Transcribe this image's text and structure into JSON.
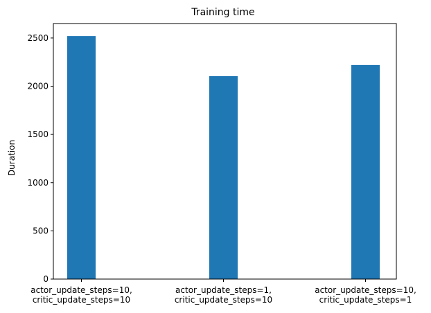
{
  "chart_data": {
    "type": "bar",
    "title": "Training time",
    "xlabel": "",
    "ylabel": "Duration",
    "categories": [
      "actor_update_steps=10,\ncritic_update_steps=10",
      "actor_update_steps=1,\ncritic_update_steps=10",
      "actor_update_steps=10,\ncritic_update_steps=1"
    ],
    "values": [
      2520,
      2105,
      2220
    ],
    "ylim": [
      0,
      2650
    ],
    "yticks": [
      0,
      500,
      1000,
      1500,
      2000,
      2500
    ],
    "grid": false,
    "legend": "none",
    "bar_color": "#1f77b4"
  }
}
